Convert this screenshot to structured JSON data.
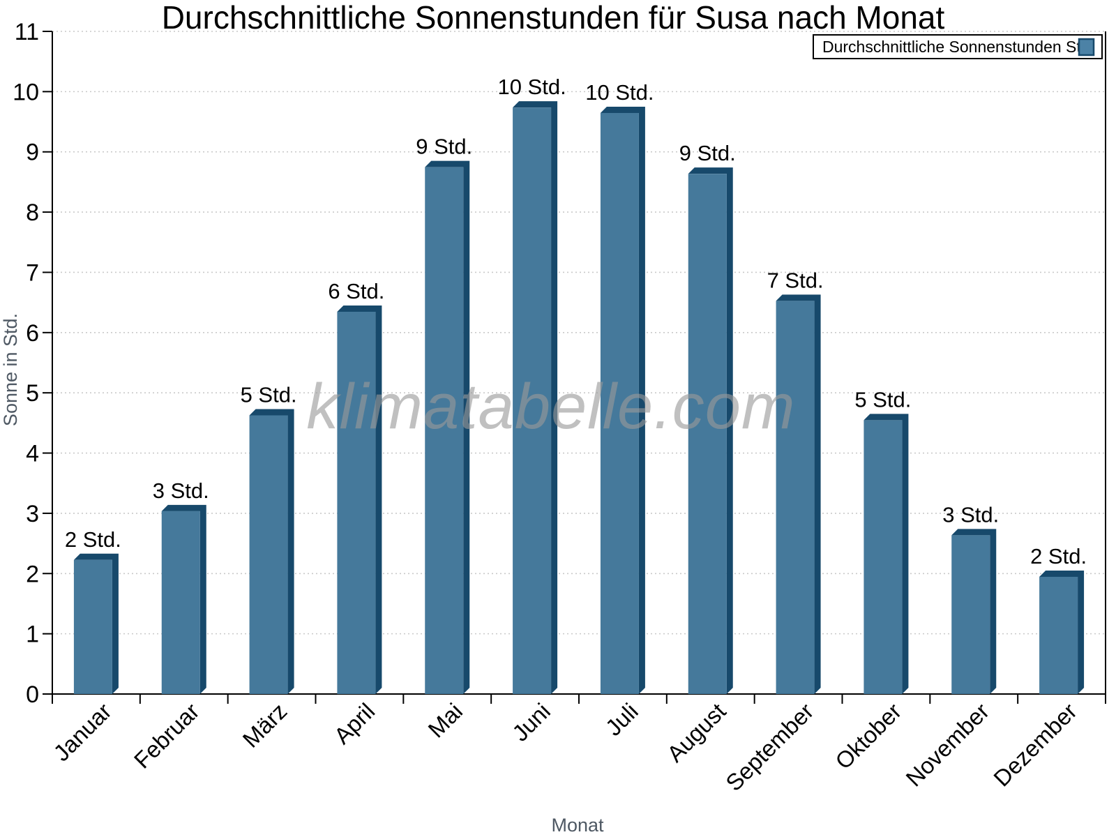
{
  "chart_data": {
    "type": "bar",
    "title": "Durchschnittliche Sonnenstunden für Susa nach Monat",
    "xlabel": "Monat",
    "ylabel": "Sonne in Std.",
    "watermark": "klimatabelle.com",
    "categories": [
      "Januar",
      "Februar",
      "März",
      "April",
      "Mai",
      "Juni",
      "Juli",
      "August",
      "September",
      "Oktober",
      "November",
      "Dezember"
    ],
    "series": [
      {
        "name": "Durchschnittliche Sonnenstunden Std.",
        "values": [
          2.33,
          3.14,
          4.73,
          6.45,
          8.85,
          9.84,
          9.75,
          8.74,
          6.63,
          4.65,
          2.74,
          2.05
        ]
      }
    ],
    "bar_labels": [
      "2 Std.",
      "3 Std.",
      "5 Std.",
      "6 Std.",
      "9 Std.",
      "10 Std.",
      "10 Std.",
      "9 Std.",
      "7 Std.",
      "5 Std.",
      "3 Std.",
      "2 Std."
    ],
    "ylim": [
      0,
      11
    ],
    "y_ticks": [
      0,
      1,
      2,
      3,
      4,
      5,
      6,
      7,
      8,
      9,
      10,
      11
    ],
    "grid": "horizontal-dotted",
    "legend_position": "top-right",
    "x_labels_rotation_deg": -45,
    "colors": {
      "bar_face": "#45799B",
      "bar_edge": "#17496B",
      "legend_swatch": "#4C82A6",
      "gridline": "#c9c9c9",
      "axis": "#000000",
      "tick_label": "#000000",
      "axis_title": "#4e5863",
      "watermark": "#999999",
      "background": "#ffffff"
    }
  }
}
